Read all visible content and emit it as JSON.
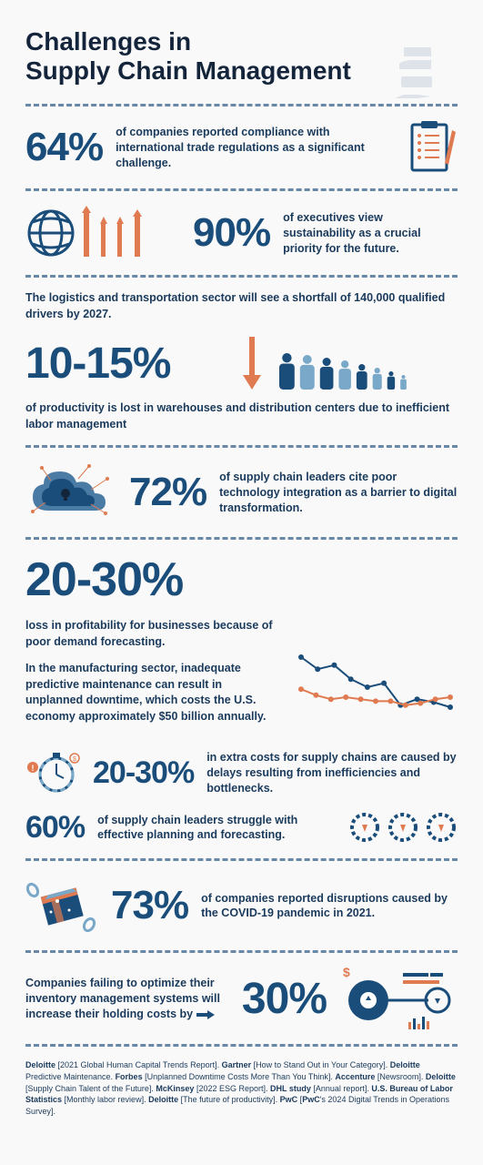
{
  "title": "Challenges in\nSupply Chain Management",
  "sections": {
    "s1": {
      "stat": "64%",
      "desc": "of companies reported compliance with international trade regulations as a significant challenge."
    },
    "s2": {
      "stat": "90%",
      "desc": "of executives view sustainability as a crucial priority for the future."
    },
    "s3": {
      "intro": "The logistics and transportation sector will see a shortfall of 140,000 qualified drivers by 2027.",
      "stat": "10-15%",
      "desc": "of productivity is lost in warehouses and distribution centers due to inefficient labor management"
    },
    "s4": {
      "stat": "72%",
      "desc": "of supply chain leaders cite poor technology integration as a barrier to digital transformation."
    },
    "s5": {
      "stat": "20-30%",
      "desc1": "loss in profitability for businesses because of poor demand forecasting.",
      "desc2": "In the manufacturing sector, inadequate predictive maintenance can result in unplanned downtime, which costs the U.S. economy approximately $50 billion annually.",
      "stat2": "20-30%",
      "desc3": "in extra costs for supply chains are caused by delays resulting from inefficiencies and bottlenecks.",
      "stat3": "60%",
      "desc4": "of supply chain leaders struggle with effective planning and forecasting."
    },
    "s6": {
      "stat": "73%",
      "desc": "of companies reported disruptions caused by the COVID-19 pandemic in 2021."
    },
    "s7": {
      "desc": "Companies failing to optimize their inventory management systems will increase their holding costs by",
      "stat": "30%"
    }
  },
  "chart": {
    "blue": [
      70,
      58,
      62,
      48,
      40,
      44,
      22,
      28,
      25,
      20
    ],
    "orange": [
      38,
      32,
      28,
      30,
      28,
      26,
      26,
      22,
      24,
      28,
      30
    ]
  },
  "colors": {
    "navy": "#1a4d7a",
    "orange": "#e07a50",
    "lightblue": "#7aa8c9",
    "text": "#1a3a5c",
    "bg": "#f9f9f9"
  },
  "people_heights": [
    40,
    38,
    35,
    32,
    28,
    24,
    20,
    16
  ],
  "sources": "Deloitte [2021 Global Human Capital Trends Report]. Gartner [How to Stand Out in Your Category]. Deloitte Predictive Maintenance. Forbes [Unplanned Downtime Costs More Than You Think]. Accenture [Newsroom]. Deloitte [Supply Chain Talent of the Future]. McKinsey [2022 ESG Report]. DHL study [Annual report]. U.S. Bureau of Labor Statistics [Monthly labor review]. Deloitte [The future of productivity]. PwC [PwC's 2024 Digital Trends in Operations Survey]."
}
